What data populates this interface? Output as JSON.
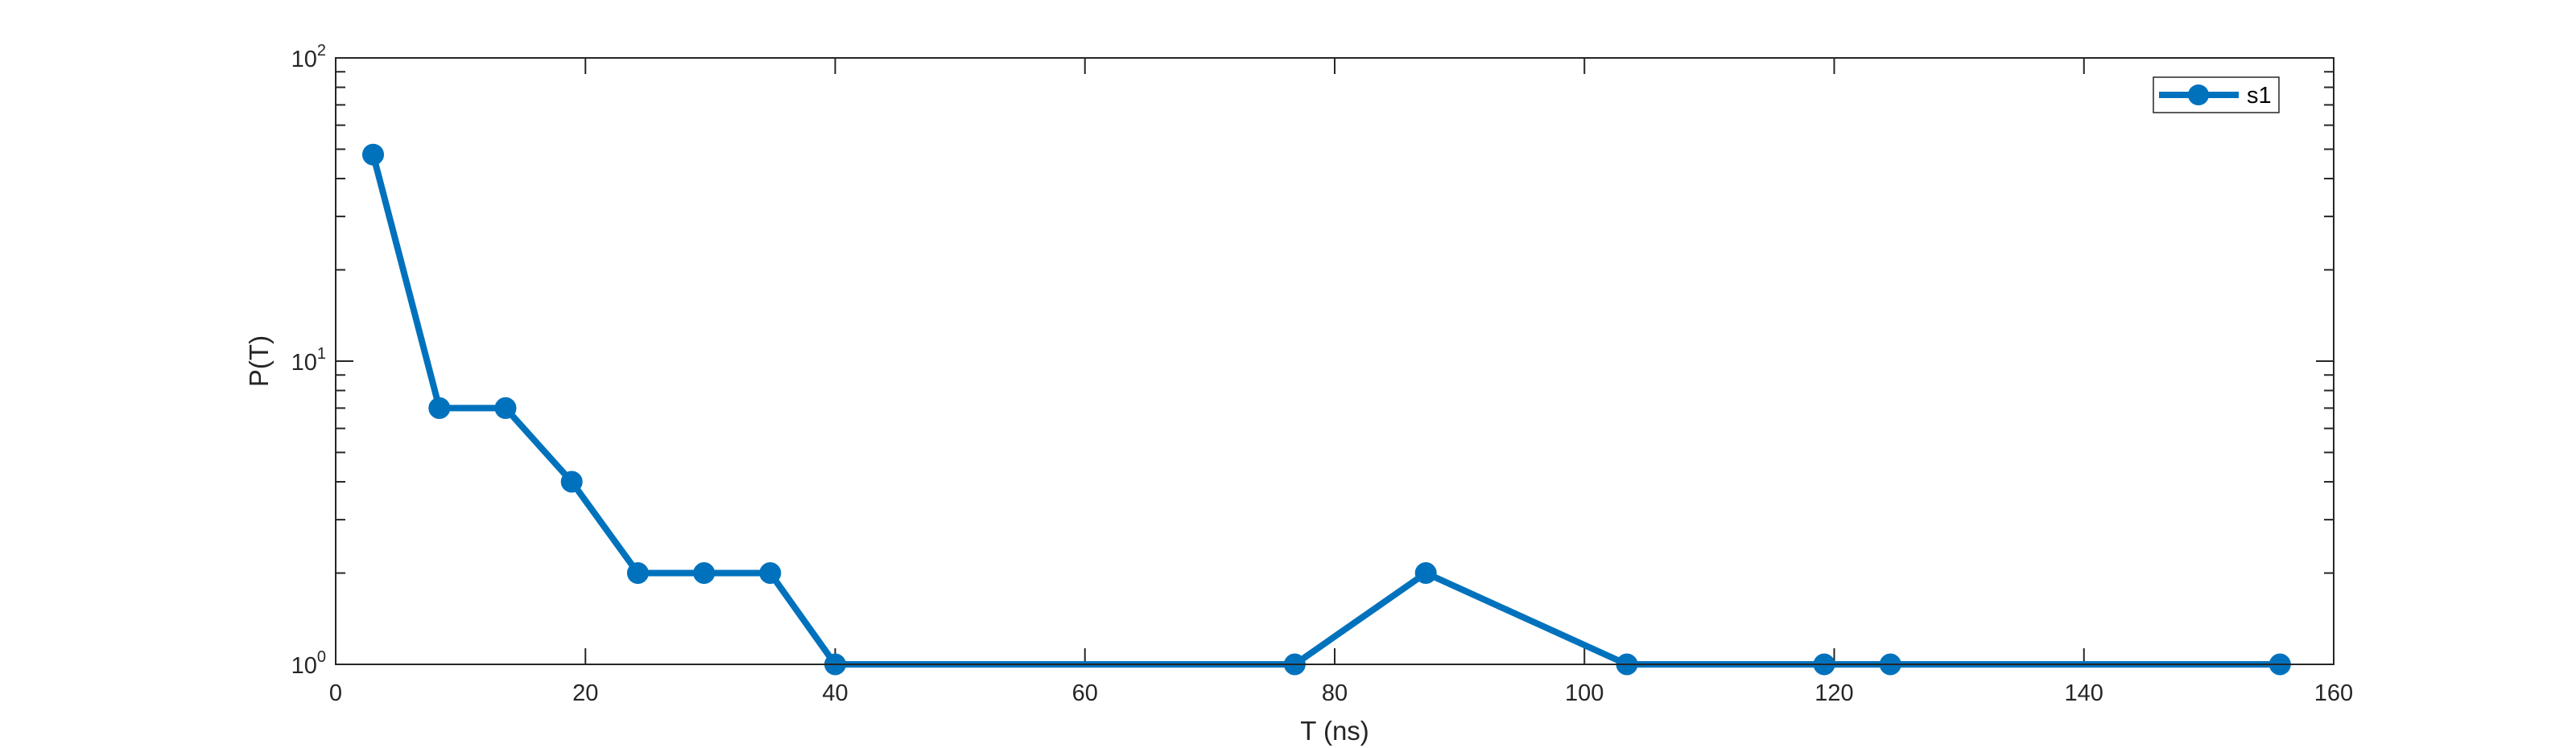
{
  "chart_data": {
    "type": "line",
    "title": "",
    "xlabel": "T (ns)",
    "ylabel": "P(T)",
    "xlim": [
      0,
      160
    ],
    "ylim": [
      1,
      100
    ],
    "yscale": "log",
    "x_ticks": [
      "0",
      "20",
      "40",
      "60",
      "80",
      "100",
      "120",
      "140",
      "160"
    ],
    "x_tick_values": [
      0,
      20,
      40,
      60,
      80,
      100,
      120,
      140,
      160
    ],
    "y_ticks": [
      {
        "value": 1,
        "base": "10",
        "exp": "0"
      },
      {
        "value": 10,
        "base": "10",
        "exp": "1"
      },
      {
        "value": 100,
        "base": "10",
        "exp": "2"
      }
    ],
    "grid": false,
    "legend": {
      "placement": "top-right",
      "entries": [
        "s1"
      ]
    },
    "series": [
      {
        "name": "s1",
        "color": "#0072BD",
        "x": [
          3.0,
          8.3,
          13.6,
          18.9,
          24.2,
          29.5,
          34.8,
          40.0,
          76.8,
          87.3,
          103.4,
          119.2,
          124.5,
          155.7
        ],
        "y": [
          48,
          7,
          7,
          4,
          2,
          2,
          2,
          1,
          1,
          2,
          1,
          1,
          1,
          1
        ]
      }
    ]
  }
}
